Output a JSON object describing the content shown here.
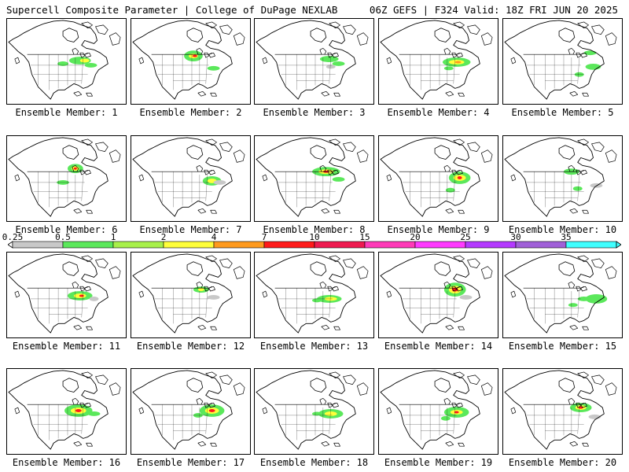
{
  "header": {
    "title_left": "Supercell Composite Parameter | College of DuPage NEXLAB",
    "title_right": "06Z GEFS | F324 Valid: 18Z FRI JUN 20 2025"
  },
  "colorbar": {
    "levels": [
      {
        "label": "0.25",
        "color": "#c8c8c8"
      },
      {
        "label": "0.5",
        "color": "#5be85b"
      },
      {
        "label": "1",
        "color": "#a8f04a"
      },
      {
        "label": "2",
        "color": "#ffff3a"
      },
      {
        "label": "4",
        "color": "#ff9a1e"
      },
      {
        "label": "7",
        "color": "#ff1a1a"
      },
      {
        "label": "10",
        "color": "#ee1a50"
      },
      {
        "label": "15",
        "color": "#ff3ab8"
      },
      {
        "label": "20",
        "color": "#ff3aff"
      },
      {
        "label": "25",
        "color": "#b43aff"
      },
      {
        "label": "30",
        "color": "#a060d8"
      },
      {
        "label": "35",
        "color": "#40ffff"
      }
    ]
  },
  "panels": [
    {
      "label": "Ensemble Member: 1"
    },
    {
      "label": "Ensemble Member: 2"
    },
    {
      "label": "Ensemble Member: 3"
    },
    {
      "label": "Ensemble Member: 4"
    },
    {
      "label": "Ensemble Member: 5"
    },
    {
      "label": "Ensemble Member: 6"
    },
    {
      "label": "Ensemble Member: 7"
    },
    {
      "label": "Ensemble Member: 8"
    },
    {
      "label": "Ensemble Member: 9"
    },
    {
      "label": "Ensemble Member: 10"
    },
    {
      "label": "Ensemble Member: 11"
    },
    {
      "label": "Ensemble Member: 12"
    },
    {
      "label": "Ensemble Member: 13"
    },
    {
      "label": "Ensemble Member: 14"
    },
    {
      "label": "Ensemble Member: 15"
    },
    {
      "label": "Ensemble Member: 16"
    },
    {
      "label": "Ensemble Member: 17"
    },
    {
      "label": "Ensemble Member: 18"
    },
    {
      "label": "Ensemble Member: 19"
    },
    {
      "label": "Ensemble Member: 20"
    }
  ]
}
